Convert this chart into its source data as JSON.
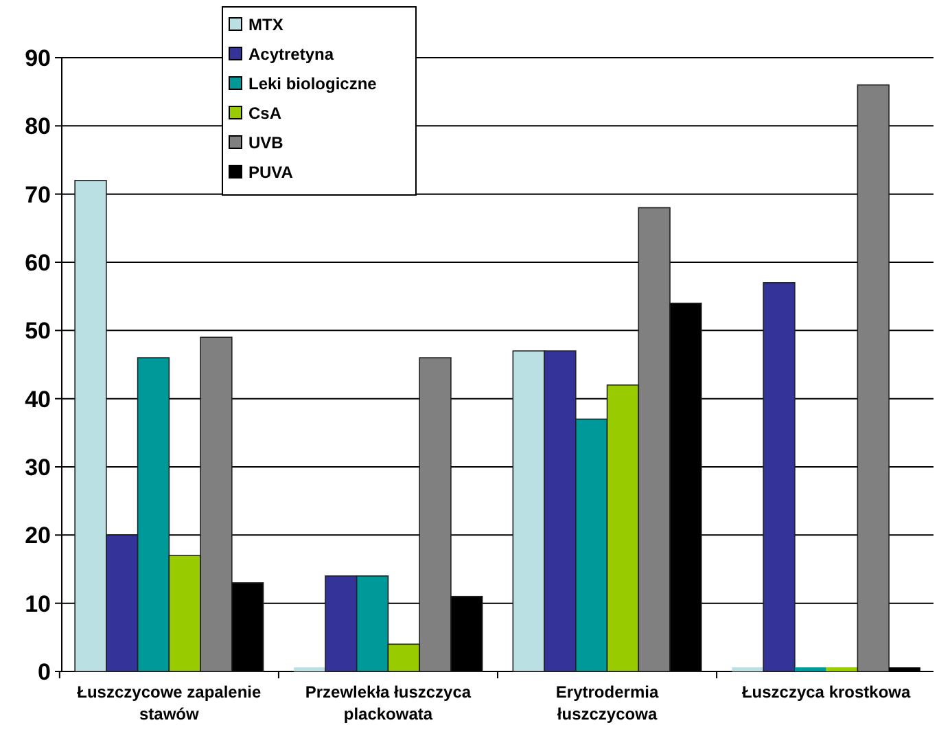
{
  "chart_data": {
    "type": "bar",
    "categories": [
      "Łuszczycowe zapalenie stawów",
      "Przewlekła łuszczyca plackowata",
      "Erytrodermia łuszczycowa",
      "Łuszczyca krostkowa"
    ],
    "series": [
      {
        "name": "MTX",
        "color": "#bbe0e3",
        "values": [
          72,
          0,
          47,
          0
        ]
      },
      {
        "name": "Acytretyna",
        "color": "#333399",
        "values": [
          20,
          14,
          47,
          57
        ]
      },
      {
        "name": "Leki biologiczne",
        "color": "#009999",
        "values": [
          46,
          14,
          37,
          0
        ]
      },
      {
        "name": "CsA",
        "color": "#99cc00",
        "values": [
          17,
          4,
          42,
          0
        ]
      },
      {
        "name": "UVB",
        "color": "#808080",
        "values": [
          49,
          46,
          68,
          86
        ]
      },
      {
        "name": "PUVA",
        "color": "#000000",
        "values": [
          13,
          11,
          54,
          0
        ]
      }
    ],
    "ylim": [
      0,
      90
    ],
    "yticks": [
      0,
      10,
      20,
      30,
      40,
      50,
      60,
      70,
      80,
      90
    ],
    "grid": "y",
    "legend": "top"
  }
}
